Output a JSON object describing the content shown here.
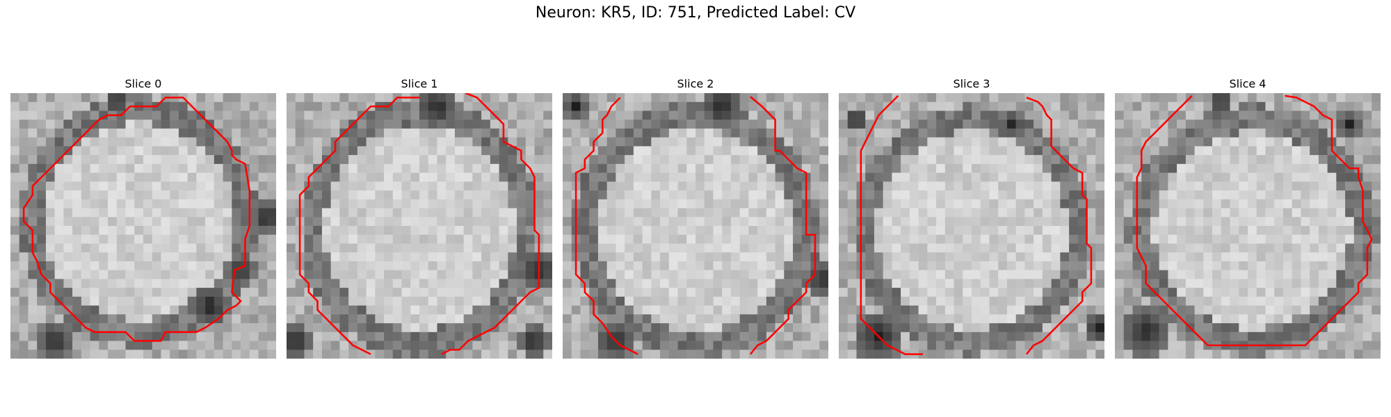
{
  "figure": {
    "title": "Neuron: KR5, ID: 751, Predicted Label: CV"
  },
  "colors": {
    "contour": "#ff0000",
    "background": "#ffffff"
  },
  "panels": [
    {
      "title": "Slice 0"
    },
    {
      "title": "Slice 1"
    },
    {
      "title": "Slice 2"
    },
    {
      "title": "Slice 3"
    },
    {
      "title": "Slice 4"
    }
  ]
}
